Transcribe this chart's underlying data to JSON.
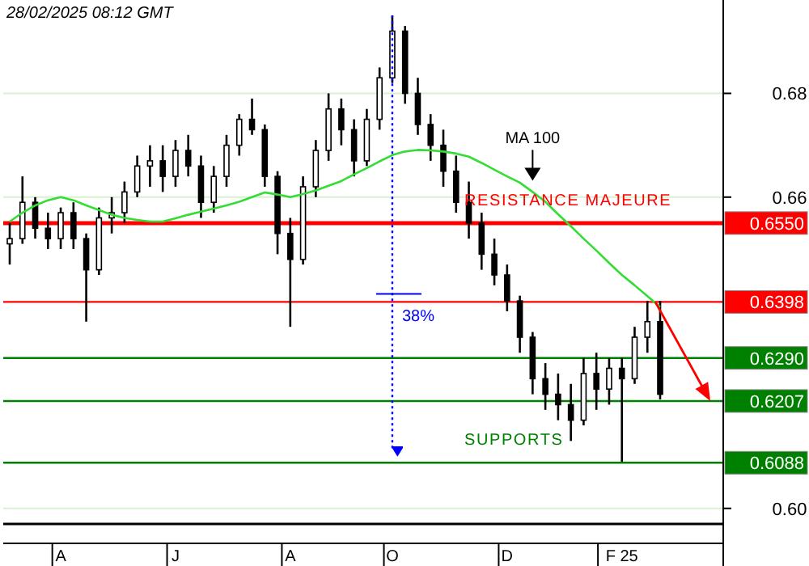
{
  "chart_data": {
    "type": "candlestick",
    "title": "28/02/2025 08:12 GMT",
    "color": "#000000",
    "categories": [
      null,
      null,
      null,
      null,
      "A",
      null,
      null,
      null,
      null,
      null,
      null,
      null,
      null,
      "J",
      null,
      null,
      null,
      null,
      null,
      null,
      null,
      null,
      "A",
      null,
      null,
      null,
      null,
      null,
      null,
      null,
      "O",
      null,
      null,
      null,
      null,
      null,
      null,
      null,
      null,
      "D",
      null,
      null,
      null,
      null,
      null,
      null,
      null,
      null,
      "F 25",
      null,
      null,
      null
    ],
    "ohlc": [
      [
        0.651,
        0.655,
        0.647,
        0.652
      ],
      [
        0.652,
        0.664,
        0.651,
        0.659
      ],
      [
        0.659,
        0.66,
        0.652,
        0.654
      ],
      [
        0.654,
        0.657,
        0.65,
        0.652
      ],
      [
        0.652,
        0.658,
        0.65,
        0.657
      ],
      [
        0.657,
        0.659,
        0.65,
        0.652
      ],
      [
        0.652,
        0.653,
        0.636,
        0.646
      ],
      [
        0.646,
        0.658,
        0.645,
        0.656
      ],
      [
        0.656,
        0.66,
        0.653,
        0.657
      ],
      [
        0.657,
        0.663,
        0.655,
        0.661
      ],
      [
        0.661,
        0.668,
        0.66,
        0.666
      ],
      [
        0.666,
        0.67,
        0.662,
        0.667
      ],
      [
        0.667,
        0.67,
        0.661,
        0.664
      ],
      [
        0.664,
        0.671,
        0.662,
        0.669
      ],
      [
        0.669,
        0.672,
        0.664,
        0.666
      ],
      [
        0.666,
        0.668,
        0.656,
        0.659
      ],
      [
        0.659,
        0.666,
        0.657,
        0.664
      ],
      [
        0.664,
        0.672,
        0.662,
        0.67
      ],
      [
        0.67,
        0.676,
        0.668,
        0.675
      ],
      [
        0.675,
        0.679,
        0.672,
        0.673
      ],
      [
        0.673,
        0.674,
        0.662,
        0.664
      ],
      [
        0.664,
        0.665,
        0.649,
        0.653
      ],
      [
        0.653,
        0.656,
        0.635,
        0.648
      ],
      [
        0.648,
        0.664,
        0.647,
        0.662
      ],
      [
        0.662,
        0.671,
        0.66,
        0.669
      ],
      [
        0.669,
        0.68,
        0.667,
        0.677
      ],
      [
        0.677,
        0.679,
        0.67,
        0.673
      ],
      [
        0.673,
        0.675,
        0.664,
        0.667
      ],
      [
        0.667,
        0.677,
        0.666,
        0.675
      ],
      [
        0.675,
        0.685,
        0.673,
        0.683
      ],
      [
        0.683,
        0.695,
        0.682,
        0.692
      ],
      [
        0.692,
        0.693,
        0.678,
        0.68
      ],
      [
        0.68,
        0.683,
        0.672,
        0.674
      ],
      [
        0.674,
        0.676,
        0.667,
        0.67
      ],
      [
        0.67,
        0.673,
        0.662,
        0.665
      ],
      [
        0.665,
        0.668,
        0.657,
        0.659
      ],
      [
        0.659,
        0.663,
        0.652,
        0.655
      ],
      [
        0.655,
        0.657,
        0.646,
        0.649
      ],
      [
        0.649,
        0.652,
        0.643,
        0.645
      ],
      [
        0.645,
        0.647,
        0.638,
        0.64
      ],
      [
        0.64,
        0.641,
        0.63,
        0.633
      ],
      [
        0.633,
        0.634,
        0.622,
        0.625
      ],
      [
        0.625,
        0.628,
        0.619,
        0.622
      ],
      [
        0.622,
        0.626,
        0.617,
        0.62
      ],
      [
        0.62,
        0.624,
        0.613,
        0.617
      ],
      [
        0.617,
        0.629,
        0.616,
        0.626
      ],
      [
        0.626,
        0.63,
        0.619,
        0.623
      ],
      [
        0.623,
        0.629,
        0.62,
        0.627
      ],
      [
        0.627,
        0.629,
        0.609,
        0.625
      ],
      [
        0.625,
        0.635,
        0.624,
        0.633
      ],
      [
        0.633,
        0.64,
        0.63,
        0.636
      ],
      [
        0.636,
        0.64,
        0.621,
        0.622
      ]
    ],
    "series": [
      {
        "name": "MA 100",
        "type": "line",
        "color": "#33dd33",
        "values": [
          0.6553,
          0.657,
          0.6584,
          0.6594,
          0.66,
          0.6594,
          0.6584,
          0.6575,
          0.6566,
          0.656,
          0.6556,
          0.6553,
          0.6553,
          0.6559,
          0.6566,
          0.6572,
          0.6578,
          0.6584,
          0.6591,
          0.66,
          0.6609,
          0.6605,
          0.66,
          0.6606,
          0.6613,
          0.6622,
          0.6631,
          0.6644,
          0.6656,
          0.6669,
          0.6681,
          0.6688,
          0.6691,
          0.669,
          0.6688,
          0.6684,
          0.6678,
          0.6666,
          0.6653,
          0.664,
          0.6628,
          0.661,
          0.6591,
          0.6567,
          0.6544,
          0.652,
          0.6497,
          0.6473,
          0.645,
          0.643,
          0.6409,
          0.6388
        ]
      }
    ],
    "ylim": [
      0.597,
      0.698
    ],
    "yticks": [
      {
        "value": 0.6,
        "label": "0.60"
      },
      0.66,
      0.68
    ],
    "grid": "y",
    "ref_lines": [
      {
        "axis": "y",
        "value": 0.655,
        "label": "0.6550",
        "color": "#ff0000"
      },
      {
        "axis": "y",
        "value": 0.6398,
        "label": "0.6398",
        "color": "#ff0000"
      },
      {
        "axis": "y",
        "value": 0.629,
        "label": "0.6290",
        "color": "#008000"
      },
      {
        "axis": "y",
        "value": 0.6207,
        "label": "0.6207",
        "color": "#008000"
      },
      {
        "axis": "y",
        "value": 0.6088,
        "label": "0.6088",
        "color": "#008000"
      }
    ],
    "annotations": [
      "38%",
      {
        "text": "RESISTANCE MAJEURE",
        "y": 0.655
      },
      {
        "text": "SUPPORTS",
        "y": 0.6088
      }
    ]
  }
}
